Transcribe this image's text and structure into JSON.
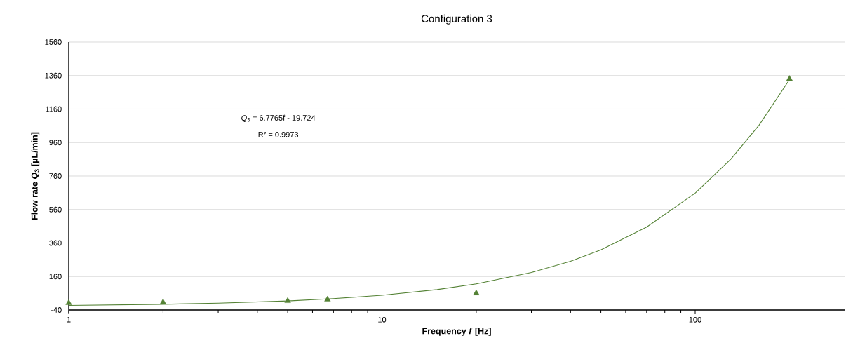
{
  "chart_data": {
    "type": "scatter",
    "title": "Configuration 3",
    "xlabel": "Frequency *f* [Hz]",
    "ylabel": "Flow rate *Q*$_{3}$ [µL/min]",
    "annotations": [
      "*Q*$_{3}$ = 6.7765f - 19.724",
      "R² = 0.9973"
    ],
    "log": "x",
    "grid": "y",
    "marker": "triangle",
    "xlim": [
      1,
      300
    ],
    "xticks": [
      1,
      10,
      100
    ],
    "ylim": [
      -40,
      1560
    ],
    "yticks": [
      -40,
      160,
      360,
      560,
      760,
      960,
      1160,
      1360,
      1560
    ],
    "series": [
      {
        "color": "#548235",
        "x": [
          1,
          2,
          5,
          6.7,
          20,
          200
        ],
        "values": [
          2,
          6,
          14,
          23,
          60,
          1340
        ]
      },
      {
        "type": "line",
        "color": "#548235",
        "marker": "none",
        "line_style": "solid",
        "x": [
          1,
          2,
          3,
          5,
          7,
          10,
          15,
          20,
          30,
          40,
          50,
          70,
          100,
          130,
          160,
          200
        ],
        "values": [
          -13,
          -6,
          1,
          14,
          28,
          48,
          82,
          116,
          184,
          251,
          319,
          455,
          658,
          861,
          1064,
          1336
        ]
      }
    ]
  }
}
